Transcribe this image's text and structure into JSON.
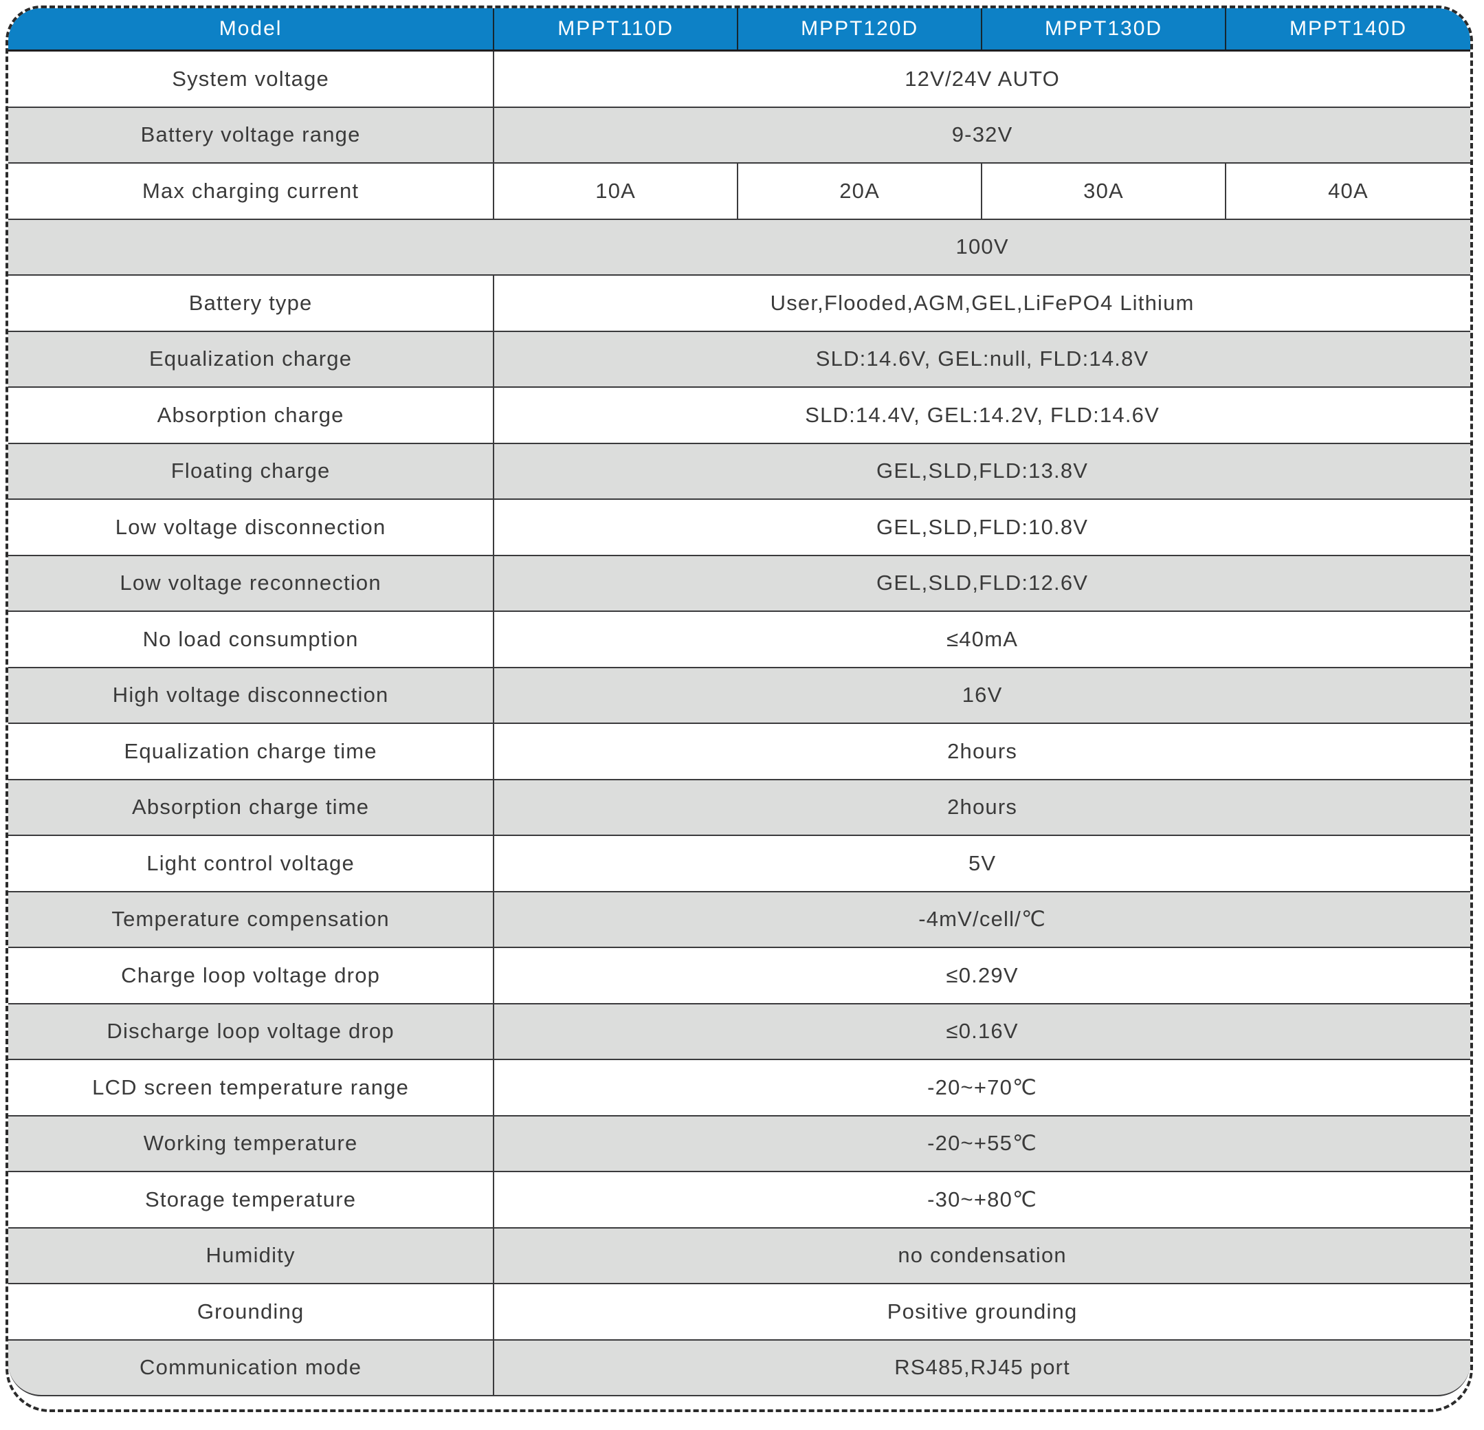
{
  "table": {
    "header": {
      "model_label": "Model",
      "models": [
        "MPPT110D",
        "MPPT120D",
        "MPPT130D",
        "MPPT140D"
      ]
    },
    "rows": [
      {
        "label": "System voltage",
        "value": "12V/24V AUTO"
      },
      {
        "label": "Battery voltage range",
        "value": "9-32V"
      },
      {
        "label": "Max charging current",
        "values": [
          "10A",
          "20A",
          "30A",
          "40A"
        ]
      },
      {
        "label": "",
        "value": "100V",
        "full": true
      },
      {
        "label": "Battery type",
        "value": "User,Flooded,AGM,GEL,LiFePO4 Lithium"
      },
      {
        "label": "Equalization charge",
        "value": "SLD:14.6V, GEL:null, FLD:14.8V"
      },
      {
        "label": "Absorption charge",
        "value": "SLD:14.4V, GEL:14.2V, FLD:14.6V"
      },
      {
        "label": "Floating charge",
        "value": "GEL,SLD,FLD:13.8V"
      },
      {
        "label": "Low voltage disconnection",
        "value": "GEL,SLD,FLD:10.8V"
      },
      {
        "label": "Low voltage reconnection",
        "value": "GEL,SLD,FLD:12.6V"
      },
      {
        "label": "No load consumption",
        "value": "≤40mA"
      },
      {
        "label": "High voltage disconnection",
        "value": "16V"
      },
      {
        "label": "Equalization charge time",
        "value": "2hours"
      },
      {
        "label": "Absorption charge time",
        "value": "2hours"
      },
      {
        "label": "Light control voltage",
        "value": "5V"
      },
      {
        "label": "Temperature compensation",
        "value": "-4mV/cell/℃"
      },
      {
        "label": "Charge loop voltage drop",
        "value": "≤0.29V"
      },
      {
        "label": "Discharge loop voltage drop",
        "value": "≤0.16V"
      },
      {
        "label": "LCD screen temperature range",
        "value": "-20~+70℃"
      },
      {
        "label": "Working temperature",
        "value": "-20~+55℃"
      },
      {
        "label": "Storage temperature",
        "value": "-30~+80℃"
      },
      {
        "label": "Humidity",
        "value": "no condensation"
      },
      {
        "label": "Grounding",
        "value": "Positive grounding"
      },
      {
        "label": "Communication mode",
        "value": "RS485,RJ45 port"
      }
    ],
    "colors": {
      "header_bg": "#0d81c6",
      "header_text": "#ffffff",
      "row_alt_bg": "#dcdddc",
      "border": "#3a3a3c",
      "text": "#3a3a3a"
    }
  }
}
